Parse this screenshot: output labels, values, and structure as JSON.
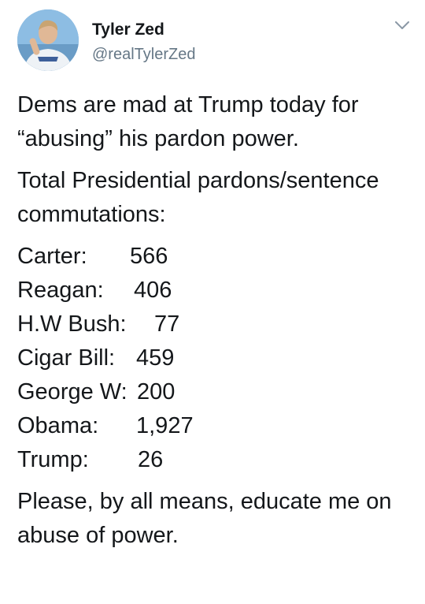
{
  "user": {
    "display_name": "Tyler Zed",
    "handle": "@realTylerZed",
    "avatar_icon": "profile-photo",
    "menu_icon": "chevron-down-icon"
  },
  "tweet": {
    "intro": "Dems are mad at Trump today for “abusing” his pardon power.",
    "list_heading": "Total Presidential pardons/sentence commutations:",
    "pardons": [
      {
        "president": "Carter:",
        "count": "566"
      },
      {
        "president": "Reagan:",
        "count": "406"
      },
      {
        "president": "H.W Bush:",
        "count": "77"
      },
      {
        "president": "Cigar Bill:",
        "count": "459"
      },
      {
        "president": "George W:",
        "count": "200"
      },
      {
        "president": "Obama:",
        "count": "1,927"
      },
      {
        "president": "Trump:",
        "count": "26"
      }
    ],
    "closing": "Please, by all means, educate me on abuse of power."
  },
  "colors": {
    "text": "#14171a",
    "secondary": "#657786"
  }
}
